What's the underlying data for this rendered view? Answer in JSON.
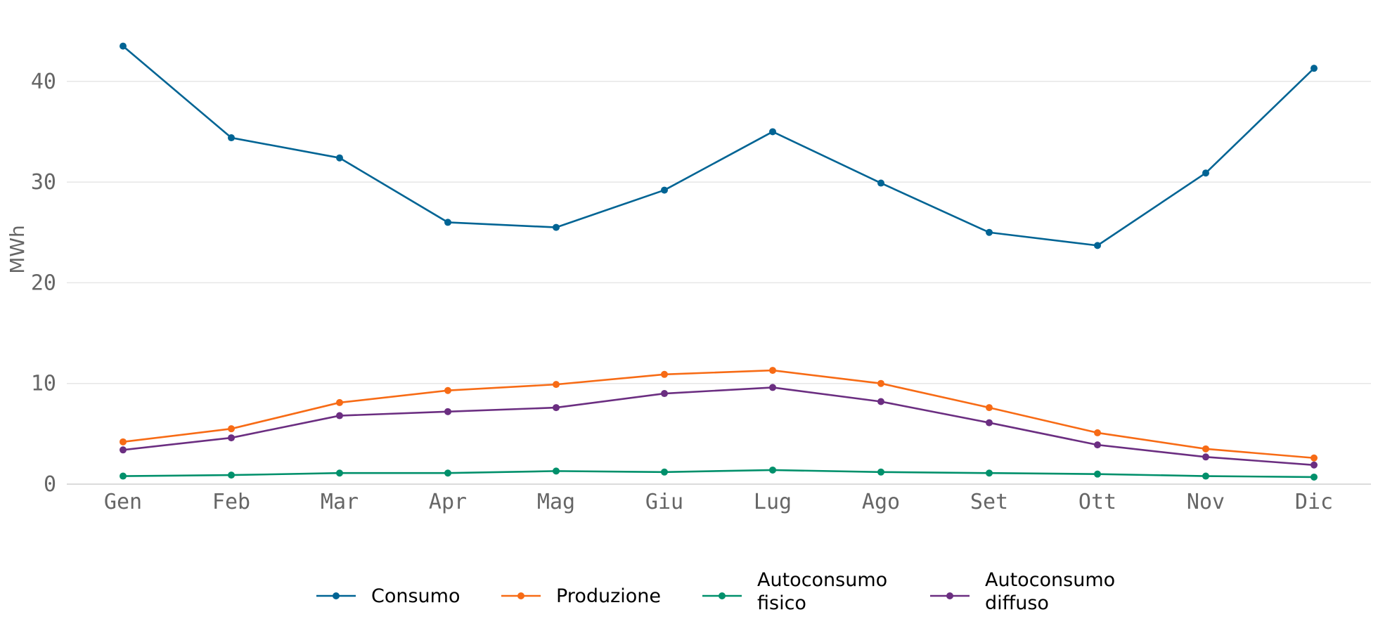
{
  "chart_data": {
    "type": "line",
    "title": "",
    "xlabel": "",
    "ylabel": "MWh",
    "categories": [
      "Gen",
      "Feb",
      "Mar",
      "Apr",
      "Mag",
      "Giu",
      "Lug",
      "Ago",
      "Set",
      "Ott",
      "Nov",
      "Dic"
    ],
    "ylim": [
      0,
      46
    ],
    "yticks": [
      "0",
      "10",
      "20",
      "30",
      "40"
    ],
    "grid": "horizontal",
    "legend_position": "bottom-center",
    "series": [
      {
        "name": "Consumo",
        "color": "#006494",
        "values": [
          43.5,
          34.4,
          32.4,
          26.0,
          25.5,
          29.2,
          35.0,
          29.9,
          25.0,
          23.7,
          30.9,
          41.3
        ]
      },
      {
        "name": "Produzione",
        "color": "#F76B15",
        "values": [
          4.2,
          5.5,
          8.1,
          9.3,
          9.9,
          10.9,
          11.3,
          10.0,
          7.6,
          5.1,
          3.5,
          2.6
        ]
      },
      {
        "name": "Autoconsumo fisico",
        "legend_lines": [
          "Autoconsumo",
          "fisico"
        ],
        "color": "#00906B",
        "values": [
          0.8,
          0.9,
          1.1,
          1.1,
          1.3,
          1.2,
          1.4,
          1.2,
          1.1,
          1.0,
          0.8,
          0.7
        ]
      },
      {
        "name": "Autoconsumo diffuso",
        "legend_lines": [
          "Autoconsumo",
          "diffuso"
        ],
        "color": "#6B2E81",
        "values": [
          3.4,
          4.6,
          6.8,
          7.2,
          7.6,
          9.0,
          9.6,
          8.2,
          6.1,
          3.9,
          2.7,
          1.9
        ]
      }
    ]
  }
}
